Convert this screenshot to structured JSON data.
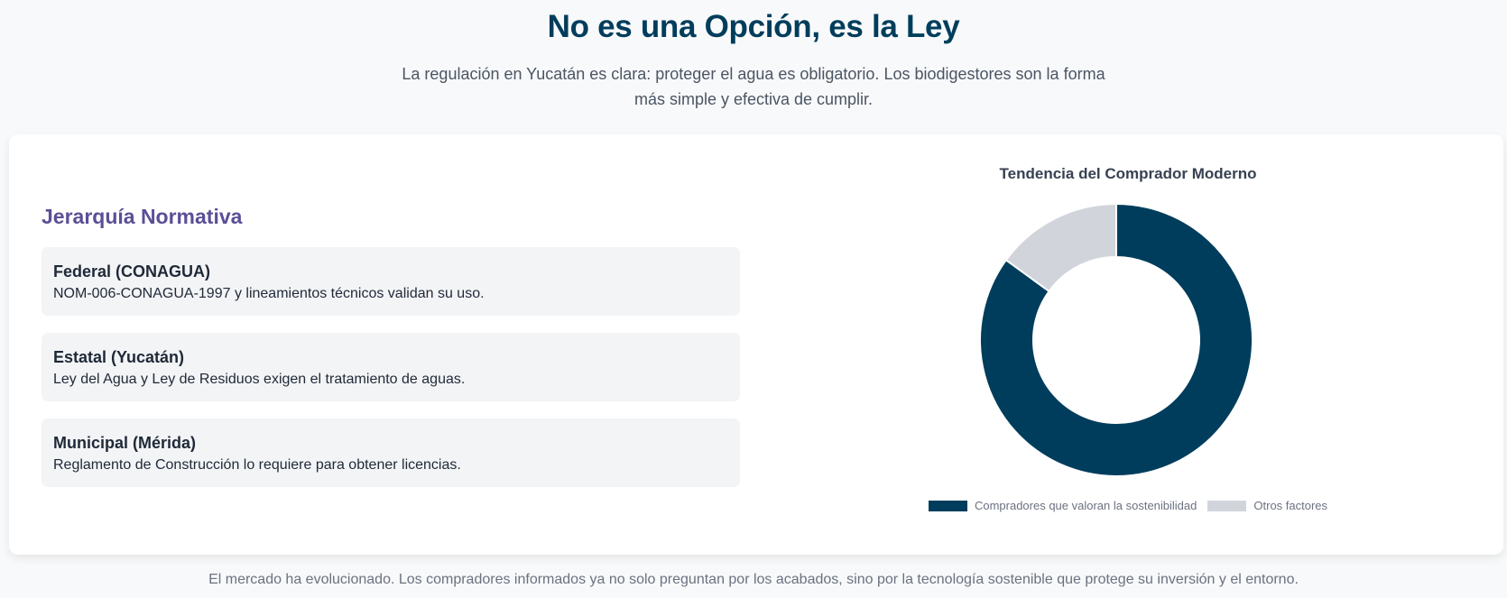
{
  "header": {
    "title": "No es una Opción, es la Ley",
    "subtitle": "La regulación en Yucatán es clara: proteger el agua es obligatorio. Los biodigestores son la forma más simple y efectiva de cumplir."
  },
  "normativa": {
    "title": "Jerarquía Normativa",
    "items": [
      {
        "title": "Federal (CONAGUA)",
        "desc": "NOM-006-CONAGUA-1997 y lineamientos técnicos validan su uso."
      },
      {
        "title": "Estatal (Yucatán)",
        "desc": "Ley del Agua y Ley de Residuos exigen el tratamiento de aguas."
      },
      {
        "title": "Municipal (Mérida)",
        "desc": "Reglamento de Construcción lo requiere para obtener licencias."
      }
    ]
  },
  "chart_data": {
    "type": "pie",
    "variant": "doughnut",
    "title": "Tendencia del Comprador Moderno",
    "categories": [
      "Compradores que valoran la sostenibilidad",
      "Otros factores"
    ],
    "values": [
      85,
      15
    ],
    "colors": [
      "#003d5c",
      "#d1d5db"
    ],
    "legend_position": "bottom"
  },
  "footer": {
    "note": "El mercado ha evolucionado. Los compradores informados ya no solo preguntan por los acabados, sino por la tecnología sostenible que protege su inversión y el entorno."
  }
}
